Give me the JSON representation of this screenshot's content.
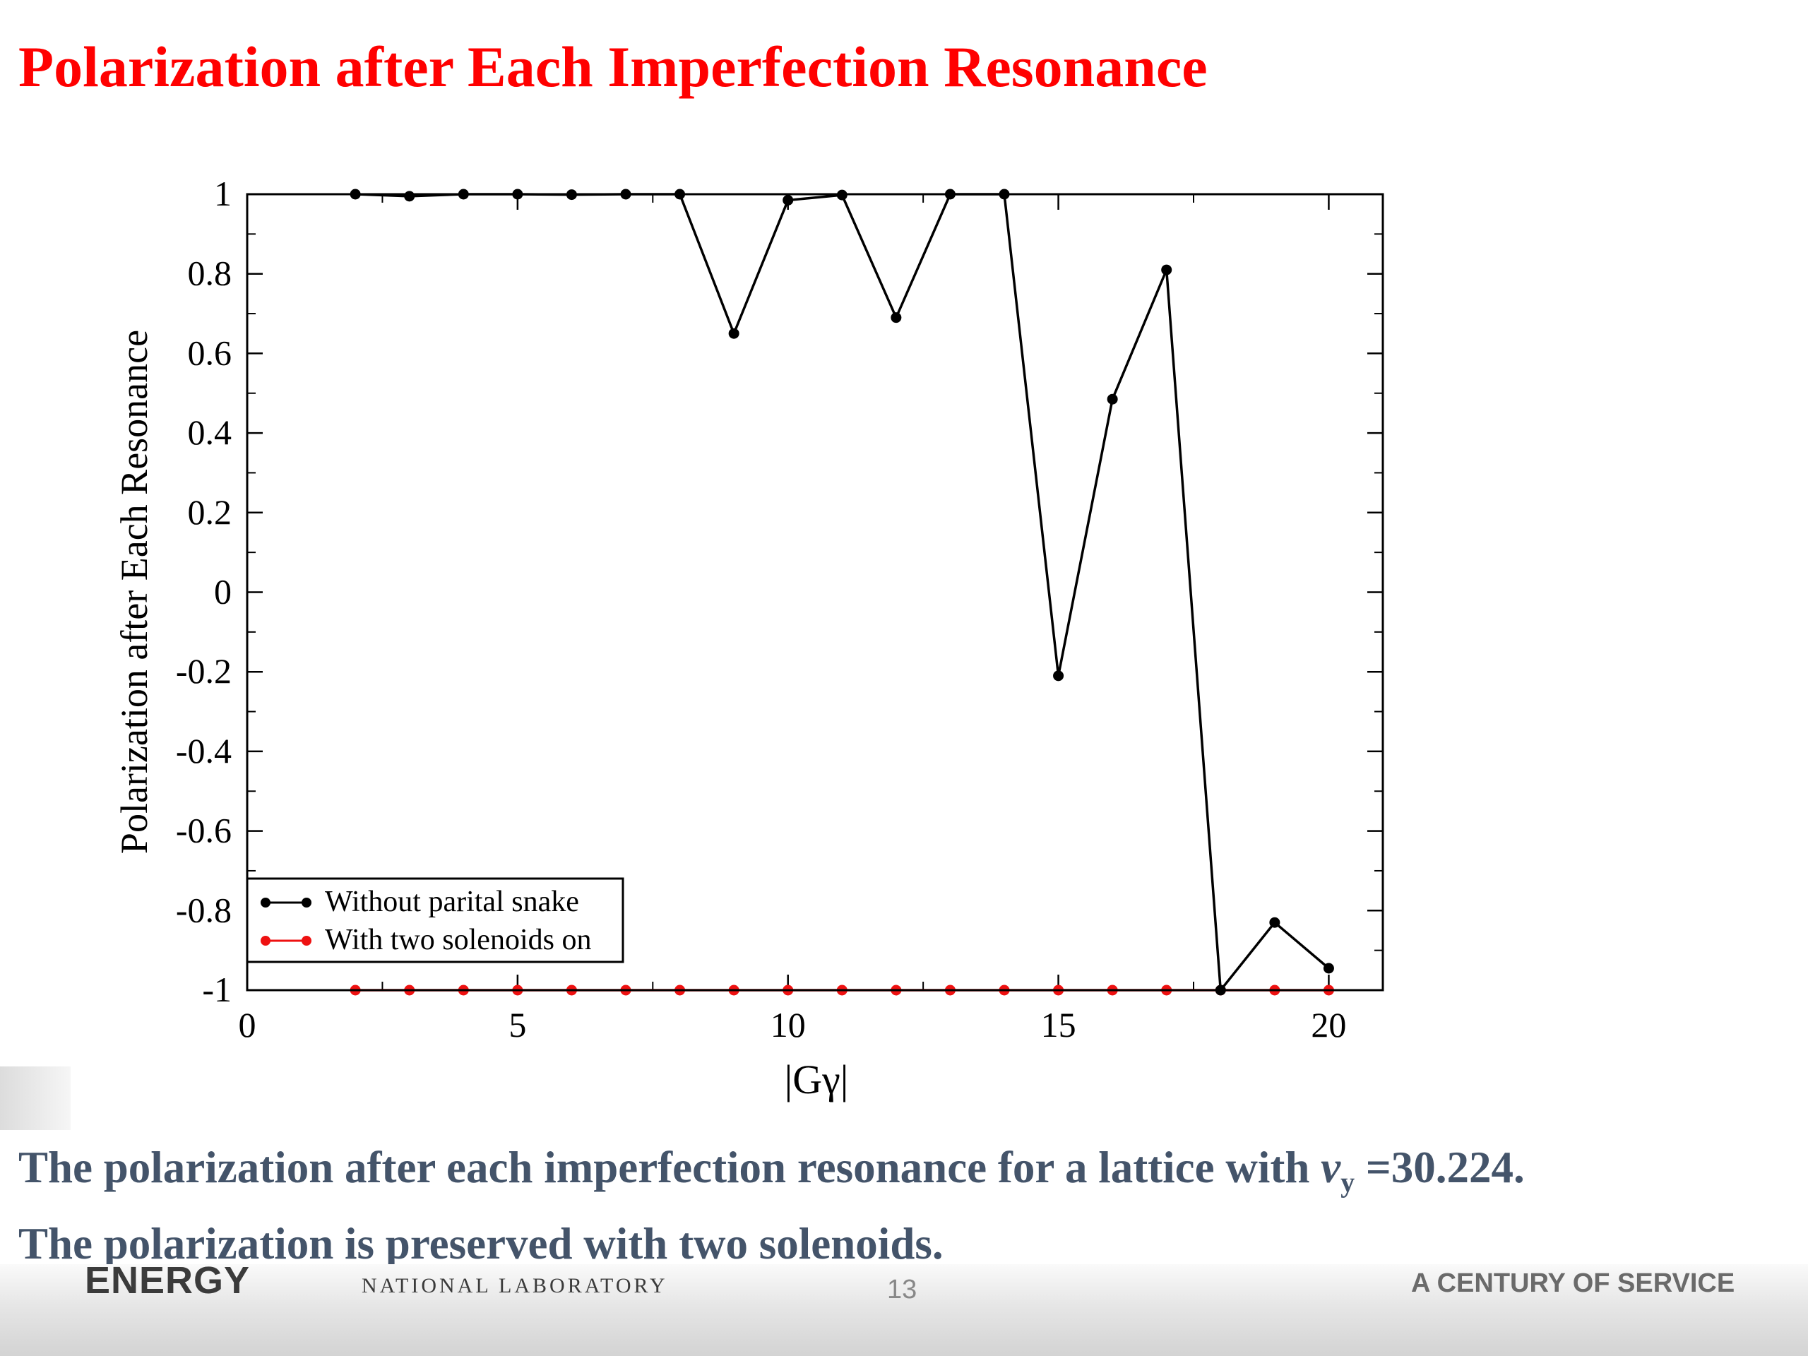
{
  "slide": {
    "title": "Polarization after Each Imperfection Resonance",
    "caption_line1_pre": "The polarization after each imperfection resonance for a lattice with ",
    "caption_nu": "ν",
    "caption_sub": "y",
    "caption_line1_post": " =30.224.",
    "caption_line2": "The polarization is preserved with two solenoids.",
    "page_number": "13",
    "footer_left_logo": "ENERGY",
    "footer_lab": "NATIONAL LABORATORY",
    "footer_right": "A CENTURY OF SERVICE"
  },
  "colors": {
    "title": "#ff0000",
    "caption": "#44546a",
    "series_without": "#000000",
    "series_with": "#ee1111"
  },
  "chart_data": {
    "type": "line",
    "xlabel": "|Gγ|",
    "ylabel": "Polarization after Each Resonance",
    "xlim": [
      0,
      21
    ],
    "ylim": [
      -1,
      1
    ],
    "xticks": [
      0,
      5,
      10,
      15,
      20
    ],
    "yticks": [
      1,
      0.8,
      0.6,
      0.4,
      0.2,
      0,
      -0.2,
      -0.4,
      -0.6,
      -0.8,
      -1
    ],
    "ytick_labels": [
      "1",
      "0.8",
      "0.6",
      "0.4",
      "0.2",
      "0",
      "-0.2",
      "-0.4",
      "-0.6",
      "-0.8",
      "-1"
    ],
    "xtick_labels": [
      "0",
      "5",
      "10",
      "15",
      "20"
    ],
    "legend_position": "bottom-left",
    "x": [
      2,
      3,
      4,
      5,
      6,
      7,
      8,
      9,
      10,
      11,
      12,
      13,
      14,
      15,
      16,
      17,
      18,
      19,
      20
    ],
    "series": [
      {
        "name": "Without parital snake",
        "color": "#000000",
        "values": [
          1.0,
          0.995,
          1.0,
          1.0,
          0.999,
          1.0,
          1.0,
          0.65,
          0.985,
          0.998,
          0.69,
          1.0,
          1.0,
          -0.21,
          0.485,
          0.81,
          -1.0,
          -0.83,
          -0.945
        ]
      },
      {
        "name": "With two solenoids on",
        "color": "#ee1111",
        "values": [
          -1,
          -1,
          -1,
          -1,
          -1,
          -1,
          -1,
          -1,
          -1,
          -1,
          -1,
          -1,
          -1,
          -1,
          -1,
          -1,
          -1,
          -1,
          -1
        ]
      }
    ]
  }
}
